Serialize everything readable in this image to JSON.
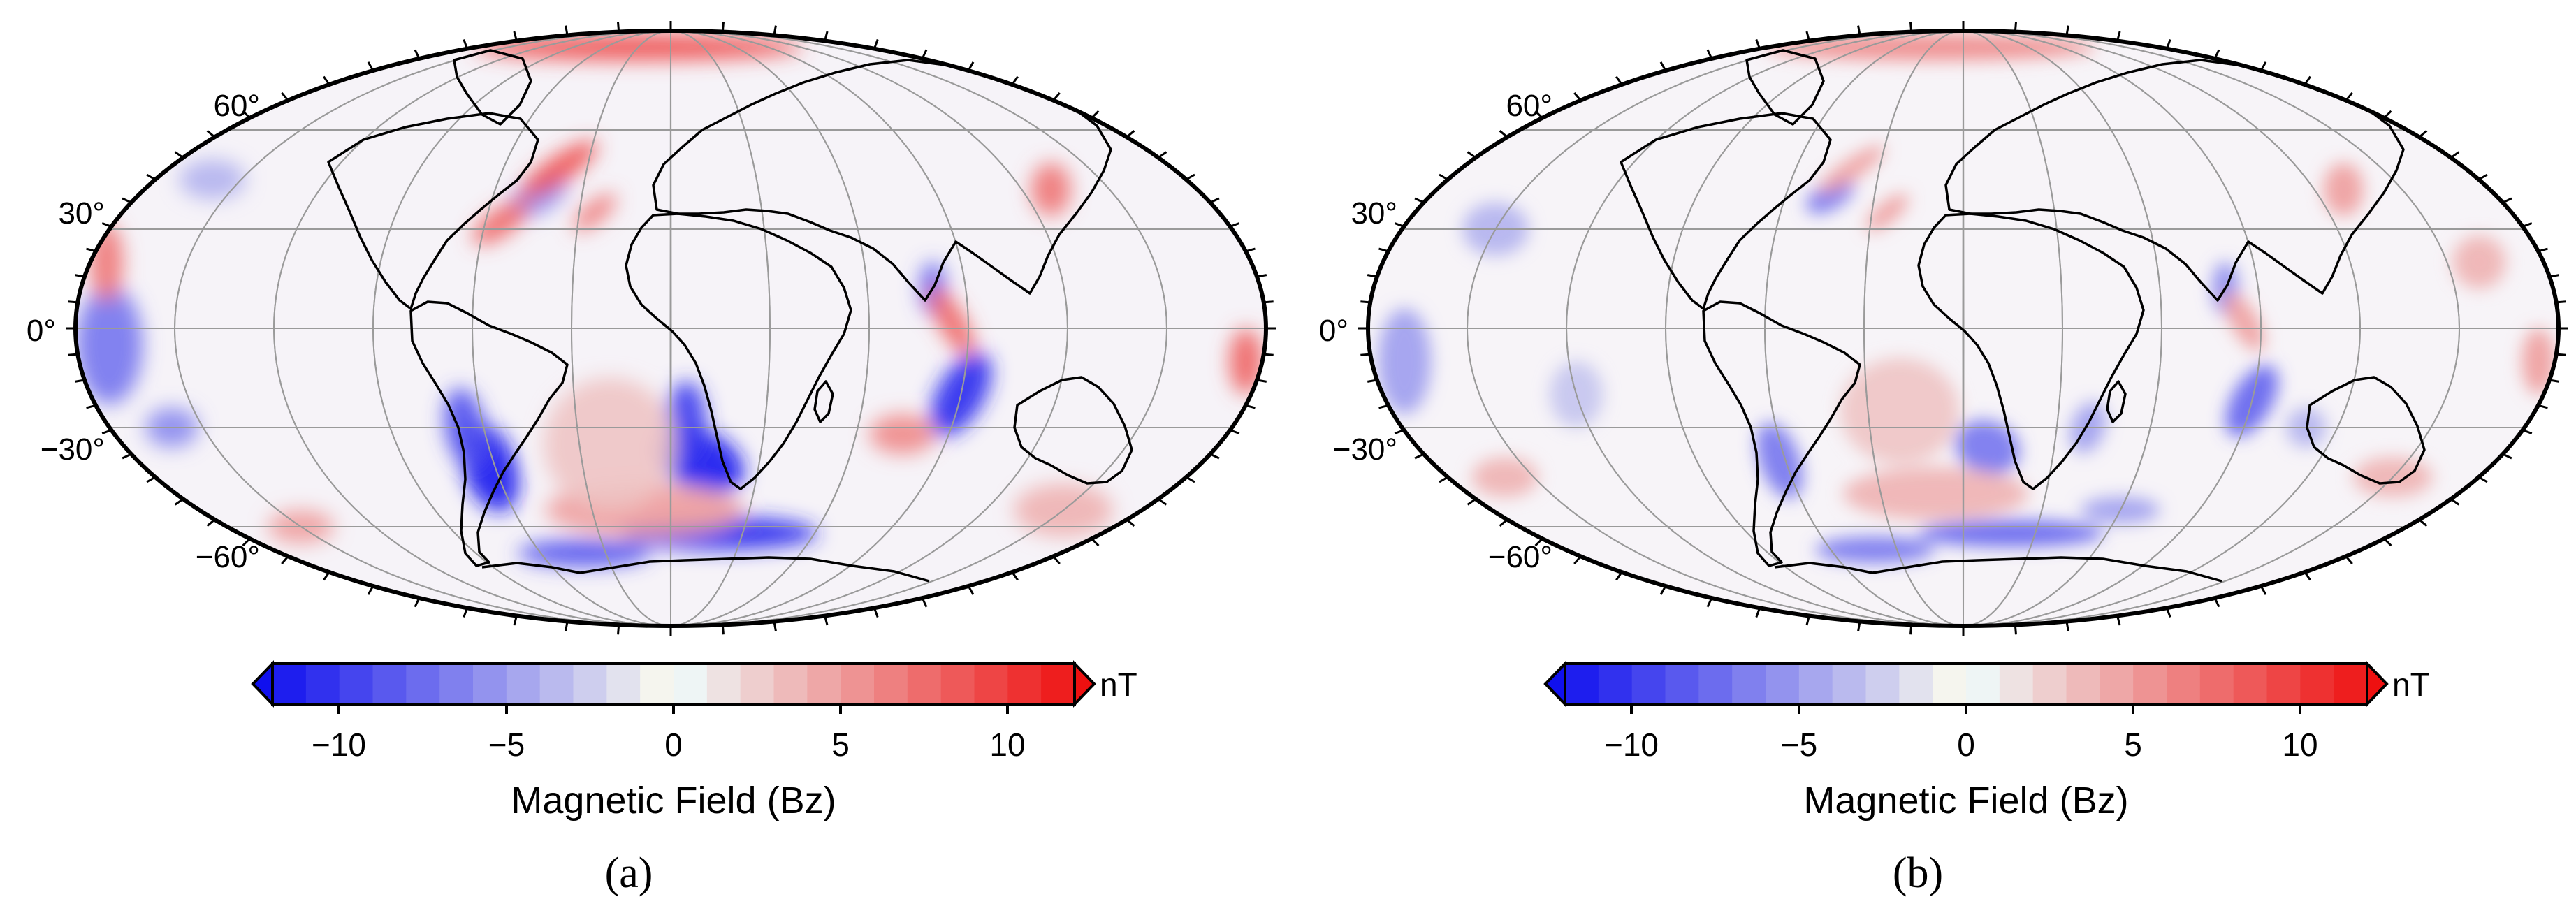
{
  "figure": {
    "panels": [
      {
        "caption": "(a)",
        "latitude_labels": [
          "60°",
          "30°",
          "0°",
          "−30°",
          "−60°"
        ],
        "colorbar": {
          "ticks": [
            "−10",
            "−5",
            "0",
            "5",
            "10"
          ],
          "unit": "nT",
          "label": "Magnetic Field (Bz)",
          "range": [
            -12,
            12
          ]
        },
        "anomalies": [
          {
            "lon": -62,
            "lat": -42,
            "value": -12,
            "w": 8,
            "h": 14,
            "rot": -20
          },
          {
            "lon": -66,
            "lat": -30,
            "value": -9,
            "w": 6,
            "h": 12,
            "rot": -10
          },
          {
            "lon": 10,
            "lat": -40,
            "value": -12,
            "w": 14,
            "h": 9,
            "rot": 25
          },
          {
            "lon": 5,
            "lat": -28,
            "value": -10,
            "w": 6,
            "h": 12,
            "rot": 0
          },
          {
            "lon": 20,
            "lat": -62,
            "value": -11,
            "w": 30,
            "h": 5,
            "rot": 0
          },
          {
            "lon": -40,
            "lat": -68,
            "value": -9,
            "w": 20,
            "h": 4,
            "rot": 0
          },
          {
            "lon": 90,
            "lat": -20,
            "value": -11,
            "w": 7,
            "h": 14,
            "rot": 30
          },
          {
            "lon": 80,
            "lat": 12,
            "value": -8,
            "w": 4,
            "h": 8,
            "rot": 0
          },
          {
            "lon": -170,
            "lat": -5,
            "value": -7,
            "w": 10,
            "h": 18,
            "rot": 0
          },
          {
            "lon": -160,
            "lat": -30,
            "value": -6,
            "w": 8,
            "h": 6,
            "rot": 0
          },
          {
            "lon": -45,
            "lat": 40,
            "value": -6,
            "w": 10,
            "h": 5,
            "rot": -30
          },
          {
            "lon": -40,
            "lat": 48,
            "value": 9,
            "w": 14,
            "h": 4,
            "rot": -35
          },
          {
            "lon": -55,
            "lat": 32,
            "value": 8,
            "w": 10,
            "h": 4,
            "rot": -35
          },
          {
            "lon": -25,
            "lat": 35,
            "value": 7,
            "w": 8,
            "h": 3,
            "rot": -40
          },
          {
            "lon": -30,
            "lat": 85,
            "value": 9,
            "w": 50,
            "h": 4,
            "rot": 0
          },
          {
            "lon": 85,
            "lat": 2,
            "value": 8,
            "w": 4,
            "h": 12,
            "rot": -30
          },
          {
            "lon": 130,
            "lat": 42,
            "value": 7,
            "w": 6,
            "h": 8,
            "rot": 0
          },
          {
            "lon": -175,
            "lat": 20,
            "value": 7,
            "w": 5,
            "h": 12,
            "rot": 0
          },
          {
            "lon": 175,
            "lat": -10,
            "value": 8,
            "w": 5,
            "h": 10,
            "rot": 0
          },
          {
            "lon": 75,
            "lat": -32,
            "value": 6,
            "w": 10,
            "h": 6,
            "rot": 0
          },
          {
            "lon": -10,
            "lat": -55,
            "value": 5,
            "w": 30,
            "h": 8,
            "rot": 0
          },
          {
            "lon": -20,
            "lat": -35,
            "value": 3,
            "w": 20,
            "h": 20,
            "rot": 0
          },
          {
            "lon": 150,
            "lat": -55,
            "value": 4,
            "w": 15,
            "h": 8,
            "rot": 0
          },
          {
            "lon": -160,
            "lat": 45,
            "value": -4,
            "w": 10,
            "h": 6,
            "rot": 0
          },
          {
            "lon": -150,
            "lat": -60,
            "value": 5,
            "w": 10,
            "h": 5,
            "rot": 0
          }
        ]
      },
      {
        "caption": "(b)",
        "latitude_labels": [
          "60°",
          "30°",
          "0°",
          "−30°",
          "−60°"
        ],
        "colorbar": {
          "ticks": [
            "−10",
            "−5",
            "0",
            "5",
            "10"
          ],
          "unit": "nT",
          "label": "Magnetic Field (Bz)",
          "range": [
            -12,
            12
          ]
        },
        "anomalies": [
          {
            "lon": -62,
            "lat": -40,
            "value": -7,
            "w": 6,
            "h": 12,
            "rot": -20
          },
          {
            "lon": 8,
            "lat": -36,
            "value": -7,
            "w": 10,
            "h": 8,
            "rot": 20
          },
          {
            "lon": 20,
            "lat": -62,
            "value": -8,
            "w": 28,
            "h": 4,
            "rot": 0
          },
          {
            "lon": -40,
            "lat": -67,
            "value": -7,
            "w": 18,
            "h": 4,
            "rot": 0
          },
          {
            "lon": 90,
            "lat": -22,
            "value": -8,
            "w": 6,
            "h": 12,
            "rot": 30
          },
          {
            "lon": 80,
            "lat": 12,
            "value": -6,
            "w": 4,
            "h": 8,
            "rot": 0
          },
          {
            "lon": -170,
            "lat": -10,
            "value": -5,
            "w": 8,
            "h": 16,
            "rot": 0
          },
          {
            "lon": -45,
            "lat": 40,
            "value": -7,
            "w": 8,
            "h": 4,
            "rot": -30
          },
          {
            "lon": -40,
            "lat": 48,
            "value": 5,
            "w": 12,
            "h": 3,
            "rot": -35
          },
          {
            "lon": -25,
            "lat": 35,
            "value": 5,
            "w": 8,
            "h": 3,
            "rot": -40
          },
          {
            "lon": -30,
            "lat": 85,
            "value": 6,
            "w": 50,
            "h": 4,
            "rot": 0
          },
          {
            "lon": 85,
            "lat": 2,
            "value": 5,
            "w": 4,
            "h": 10,
            "rot": -30
          },
          {
            "lon": 130,
            "lat": 42,
            "value": 5,
            "w": 6,
            "h": 8,
            "rot": 0
          },
          {
            "lon": 175,
            "lat": -10,
            "value": 5,
            "w": 5,
            "h": 10,
            "rot": 0
          },
          {
            "lon": -10,
            "lat": -50,
            "value": 4,
            "w": 28,
            "h": 8,
            "rot": 0
          },
          {
            "lon": -20,
            "lat": -25,
            "value": 3,
            "w": 18,
            "h": 16,
            "rot": 0
          },
          {
            "lon": 40,
            "lat": -30,
            "value": -5,
            "w": 5,
            "h": 8,
            "rot": 20
          },
          {
            "lon": -150,
            "lat": 30,
            "value": -4,
            "w": 10,
            "h": 8,
            "rot": 0
          },
          {
            "lon": -160,
            "lat": -45,
            "value": 4,
            "w": 10,
            "h": 6,
            "rot": 0
          },
          {
            "lon": 150,
            "lat": -45,
            "value": 4,
            "w": 12,
            "h": 6,
            "rot": 0
          },
          {
            "lon": 110,
            "lat": -30,
            "value": -4,
            "w": 6,
            "h": 6,
            "rot": 0
          },
          {
            "lon": 160,
            "lat": 20,
            "value": 4,
            "w": 8,
            "h": 8,
            "rot": 0
          },
          {
            "lon": -120,
            "lat": -20,
            "value": -3,
            "w": 8,
            "h": 10,
            "rot": 0
          },
          {
            "lon": 60,
            "lat": -55,
            "value": -5,
            "w": 12,
            "h": 4,
            "rot": 0
          }
        ]
      }
    ]
  }
}
